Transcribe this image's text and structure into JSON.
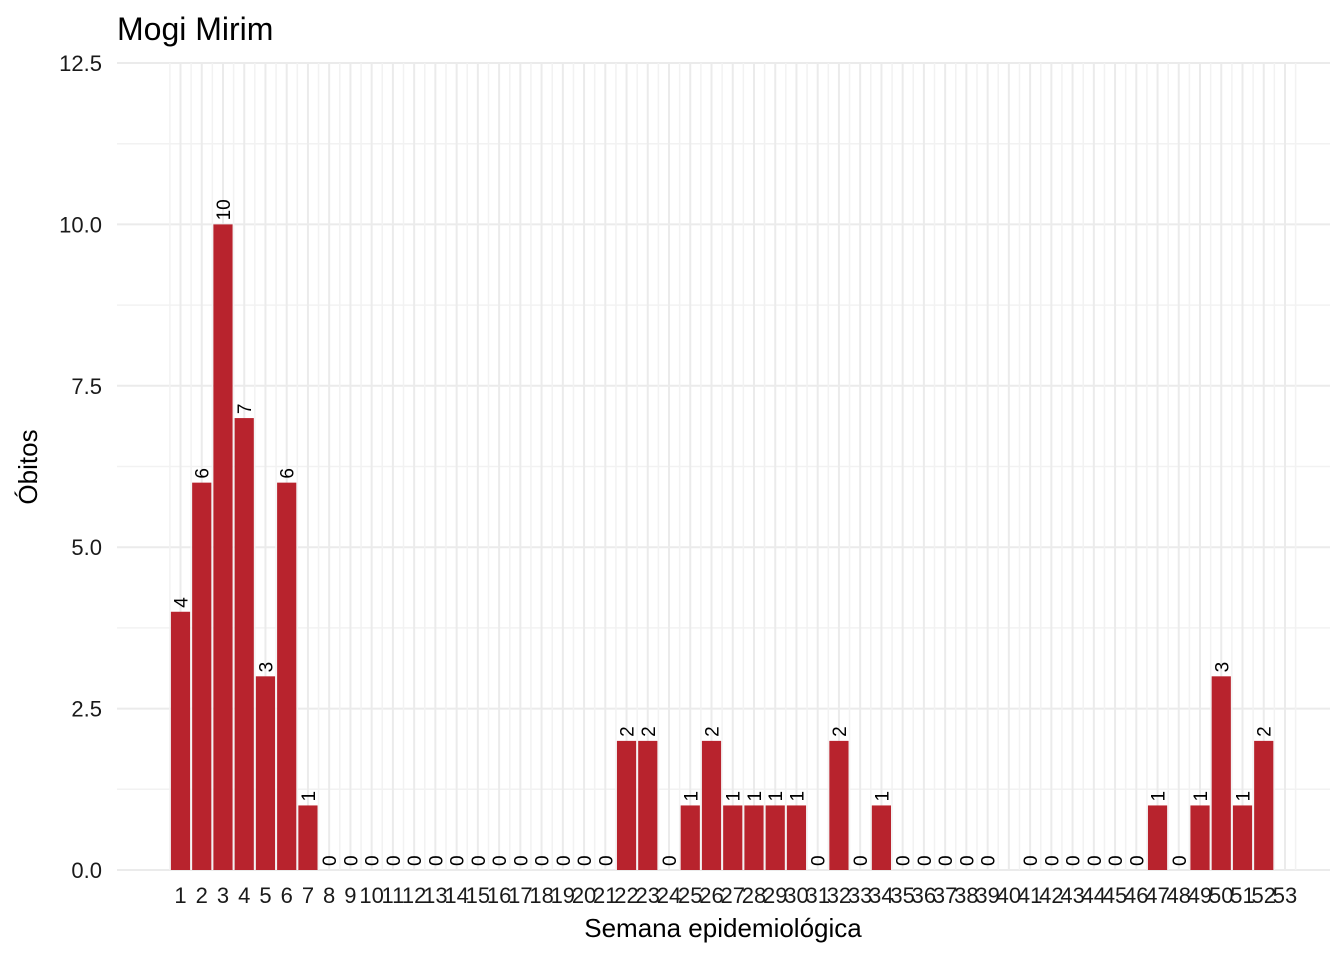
{
  "chart_data": {
    "type": "bar",
    "title": "Mogi Mirim",
    "xlabel": "Semana epidemiológica",
    "ylabel": "Óbitos",
    "categories": [
      "1",
      "2",
      "3",
      "4",
      "5",
      "6",
      "7",
      "8",
      "9",
      "10",
      "11",
      "12",
      "13",
      "14",
      "15",
      "16",
      "17",
      "18",
      "19",
      "20",
      "21",
      "22",
      "23",
      "24",
      "25",
      "26",
      "27",
      "28",
      "29",
      "30",
      "31",
      "32",
      "33",
      "34",
      "35",
      "36",
      "37",
      "38",
      "39",
      "40",
      "41",
      "42",
      "43",
      "44",
      "45",
      "46",
      "47",
      "48",
      "49",
      "50",
      "51",
      "52",
      "53"
    ],
    "values": [
      4,
      6,
      10,
      7,
      3,
      6,
      1,
      0,
      0,
      0,
      0,
      0,
      0,
      0,
      0,
      0,
      0,
      0,
      0,
      0,
      0,
      2,
      2,
      0,
      1,
      2,
      1,
      1,
      1,
      1,
      0,
      2,
      0,
      1,
      0,
      0,
      0,
      0,
      0,
      null,
      0,
      0,
      0,
      0,
      0,
      0,
      1,
      0,
      1,
      3,
      1,
      2,
      null
    ],
    "ylim": [
      0,
      12.5
    ],
    "yticks": [
      "0.0",
      "2.5",
      "5.0",
      "7.5",
      "10.0",
      "12.5"
    ],
    "grid": true,
    "bar_color": "#b8232d"
  }
}
